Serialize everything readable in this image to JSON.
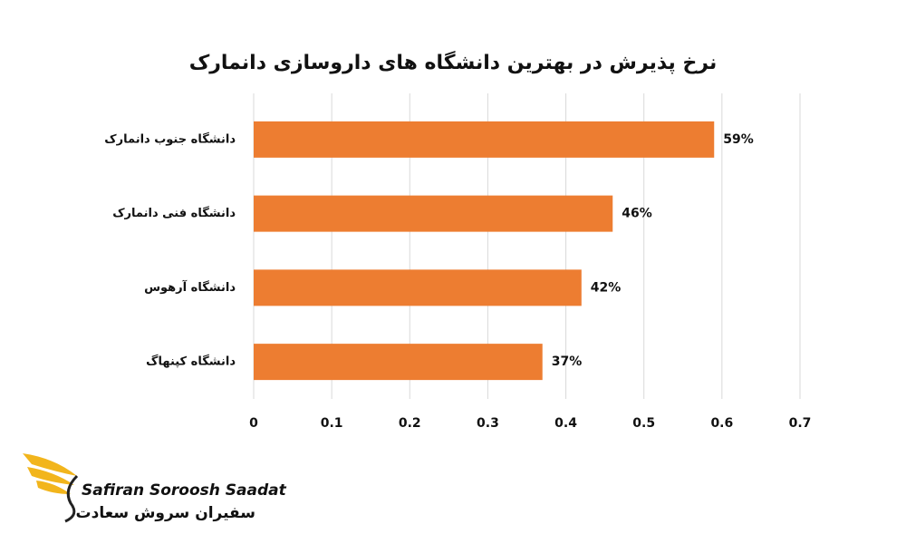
{
  "chart_data": {
    "type": "bar",
    "orientation": "horizontal",
    "title": "نرخ پذیرش در بهترین دانشگاه های داروسازی دانمارک",
    "categories": [
      "دانشگاه جنوب دانمارک",
      "دانشگاه فنی دانمارک",
      "دانشگاه آرهوس",
      "دانشگاه کپنهاگ"
    ],
    "values": [
      0.59,
      0.46,
      0.42,
      0.37
    ],
    "value_labels": [
      "59%",
      "46%",
      "42%",
      "37%"
    ],
    "color": "#ED7D31",
    "xlim": [
      0,
      0.7
    ],
    "xticks": [
      0,
      0.1,
      0.2,
      0.3,
      0.4,
      0.5,
      0.6,
      0.7
    ],
    "grid": true
  },
  "logo": {
    "name_en": "Safiran Soroosh Saadat",
    "name_fa": "سفیران سروش سعادت"
  }
}
